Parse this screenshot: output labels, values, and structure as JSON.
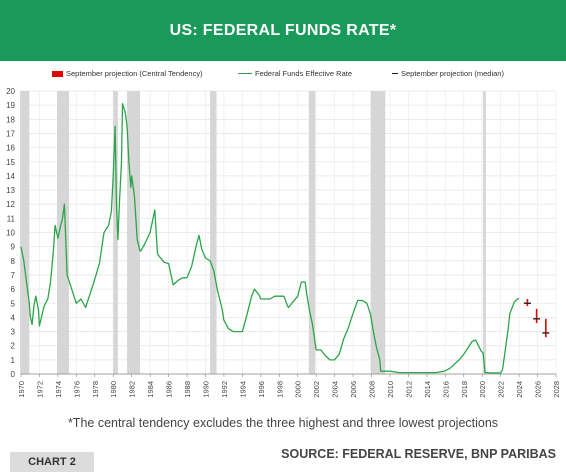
{
  "header": {
    "title": "US: FEDERAL FUNDS RATE*",
    "banner_color": "#1a9a5a"
  },
  "chart_data": {
    "type": "line",
    "x_range": [
      1970,
      2028
    ],
    "ylim": [
      0,
      20
    ],
    "y_ticks": [
      0,
      1,
      2,
      3,
      4,
      5,
      6,
      7,
      8,
      9,
      10,
      11,
      12,
      13,
      14,
      15,
      16,
      17,
      18,
      19,
      20
    ],
    "x_ticks": [
      1970,
      1972,
      1974,
      1976,
      1978,
      1980,
      1982,
      1984,
      1986,
      1988,
      1990,
      1992,
      1994,
      1996,
      1998,
      2000,
      2002,
      2004,
      2006,
      2008,
      2010,
      2012,
      2014,
      2016,
      2018,
      2020,
      2022,
      2024,
      2026,
      2028
    ],
    "grid": true,
    "legend_position": "top",
    "legend": [
      {
        "label": "September projection (Central Tendency)",
        "color": "#e10600",
        "marker": "box"
      },
      {
        "label": "Federal Funds Effective Rate",
        "color": "#2ca54a",
        "marker": "line"
      },
      {
        "label": "September projection (median)",
        "color": "#222222",
        "marker": "dash"
      }
    ],
    "recessions": [
      [
        1969.9,
        1970.9
      ],
      [
        1973.9,
        1975.2
      ],
      [
        1980.0,
        1980.5
      ],
      [
        1981.5,
        1982.9
      ],
      [
        1990.5,
        1991.2
      ],
      [
        2001.2,
        2001.9
      ],
      [
        2007.9,
        2009.5
      ],
      [
        2020.1,
        2020.4
      ]
    ],
    "series": [
      {
        "name": "Federal Funds Effective Rate",
        "color": "#2ca54a",
        "x": [
          1970.0,
          1970.3,
          1970.6,
          1970.9,
          1971.0,
          1971.2,
          1971.4,
          1971.6,
          1971.9,
          1972.0,
          1972.5,
          1972.9,
          1973.2,
          1973.5,
          1973.7,
          1974.0,
          1974.3,
          1974.5,
          1974.7,
          1975.0,
          1975.5,
          1976.0,
          1976.5,
          1977.0,
          1977.5,
          1978.0,
          1978.5,
          1979.0,
          1979.5,
          1979.8,
          1980.0,
          1980.2,
          1980.35,
          1980.5,
          1980.7,
          1980.9,
          1981.0,
          1981.3,
          1981.5,
          1981.7,
          1981.9,
          1982.0,
          1982.3,
          1982.6,
          1982.9,
          1983.0,
          1983.5,
          1984.0,
          1984.5,
          1984.8,
          1985.0,
          1985.5,
          1986.0,
          1986.5,
          1987.0,
          1987.5,
          1988.0,
          1988.5,
          1989.0,
          1989.3,
          1989.6,
          1990.0,
          1990.5,
          1990.9,
          1991.3,
          1991.8,
          1992.0,
          1992.5,
          1993.0,
          1993.5,
          1994.0,
          1994.5,
          1995.0,
          1995.3,
          1995.8,
          1996.0,
          1996.5,
          1997.0,
          1997.5,
          1998.0,
          1998.5,
          1998.9,
          1999.0,
          1999.5,
          2000.0,
          2000.4,
          2000.8,
          2001.0,
          2001.3,
          2001.6,
          2001.9,
          2002.0,
          2002.5,
          2003.0,
          2003.5,
          2004.0,
          2004.5,
          2005.0,
          2005.5,
          2006.0,
          2006.5,
          2007.0,
          2007.5,
          2007.9,
          2008.2,
          2008.5,
          2008.9,
          2009.0,
          2010.0,
          2011.0,
          2012.0,
          2013.0,
          2014.0,
          2015.0,
          2015.9,
          2016.5,
          2017.0,
          2017.5,
          2018.0,
          2018.5,
          2018.9,
          2019.3,
          2019.6,
          2019.9,
          2020.1,
          2020.3,
          2020.5,
          2021.0,
          2021.5,
          2022.0,
          2022.2,
          2022.5,
          2022.8,
          2023.0,
          2023.5,
          2023.8,
          2024.0
        ],
        "values": [
          9.0,
          8.0,
          6.5,
          5.0,
          4.1,
          3.5,
          4.8,
          5.5,
          4.5,
          3.4,
          4.8,
          5.3,
          6.5,
          8.6,
          10.5,
          9.6,
          10.5,
          11.0,
          12.0,
          7.0,
          6.0,
          5.0,
          5.3,
          4.7,
          5.7,
          6.7,
          7.8,
          10.0,
          10.5,
          11.5,
          14.0,
          17.5,
          12.0,
          9.5,
          12.5,
          15.0,
          19.1,
          18.5,
          17.5,
          15.0,
          13.2,
          14.0,
          12.5,
          9.5,
          8.7,
          8.7,
          9.3,
          10.0,
          11.6,
          8.5,
          8.3,
          7.9,
          7.8,
          6.3,
          6.6,
          6.8,
          6.8,
          7.6,
          9.1,
          9.8,
          8.8,
          8.2,
          8.0,
          7.3,
          5.9,
          4.6,
          3.8,
          3.2,
          3.0,
          3.0,
          3.0,
          4.2,
          5.5,
          6.0,
          5.6,
          5.3,
          5.3,
          5.3,
          5.5,
          5.5,
          5.5,
          4.8,
          4.7,
          5.1,
          5.5,
          6.5,
          6.5,
          5.6,
          4.4,
          3.5,
          2.1,
          1.7,
          1.7,
          1.3,
          1.0,
          1.0,
          1.4,
          2.5,
          3.3,
          4.3,
          5.2,
          5.2,
          5.0,
          4.2,
          3.0,
          2.0,
          1.0,
          0.2,
          0.2,
          0.1,
          0.1,
          0.1,
          0.1,
          0.1,
          0.2,
          0.4,
          0.7,
          1.0,
          1.4,
          1.9,
          2.3,
          2.4,
          2.0,
          1.6,
          1.5,
          0.1,
          0.1,
          0.08,
          0.08,
          0.08,
          0.3,
          1.7,
          3.1,
          4.3,
          5.1,
          5.3,
          5.33
        ]
      }
    ],
    "projections": [
      {
        "year": 2024.9,
        "median": 5.0,
        "low": 4.8,
        "high": 5.3
      },
      {
        "year": 2025.9,
        "median": 3.9,
        "low": 3.6,
        "high": 4.6
      },
      {
        "year": 2026.9,
        "median": 2.9,
        "low": 2.6,
        "high": 3.9
      }
    ]
  },
  "footnote": "*The central tendency excludes the three highest and three lowest projections",
  "chart_tag": "CHART 2",
  "source": "SOURCE: FEDERAL RESERVE, BNP PARIBAS"
}
